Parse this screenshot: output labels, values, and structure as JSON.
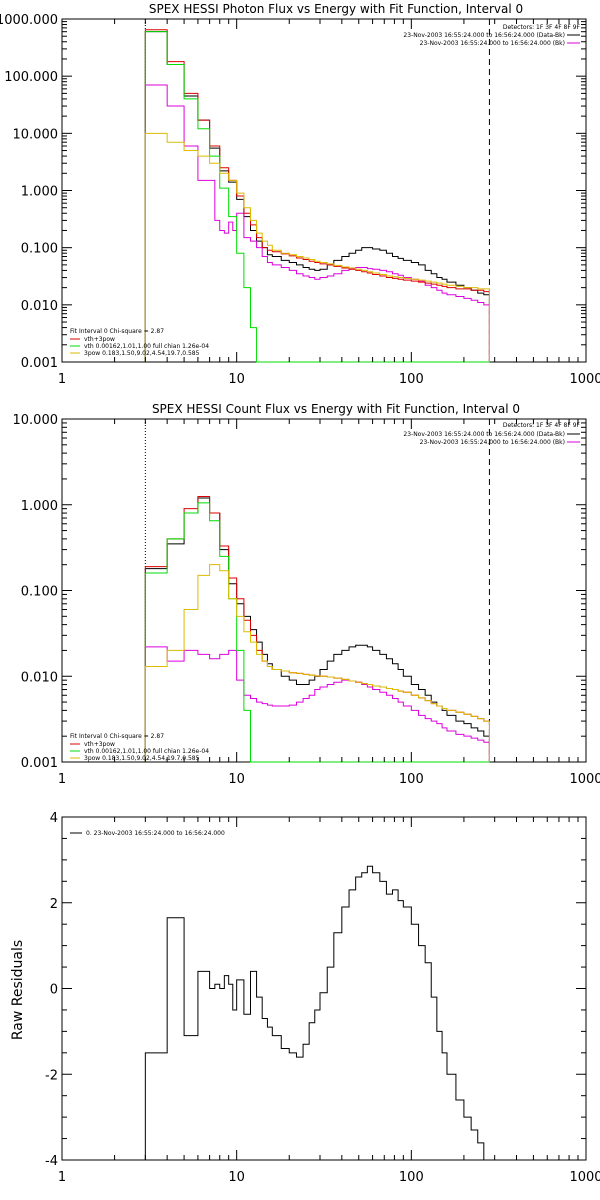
{
  "chart_data": [
    {
      "type": "line",
      "step": true,
      "title": "SPEX HESSI Photon Flux vs Energy with Fit Function, Interval 0",
      "xscale": "log",
      "yscale": "log",
      "xlim": [
        1,
        1000
      ],
      "ylim": [
        0.001,
        1000
      ],
      "x_ticks": [
        "1",
        "10",
        "100",
        "1000"
      ],
      "y_ticks": [
        "1000.000",
        "100.000",
        "10.000",
        "1.000",
        "0.100",
        "0.010",
        "0.001"
      ],
      "legend_right": [
        "Detectors: 1F 3F 4F 8F 9F",
        "23-Nov-2003 16:55:24.000 to 16:56:24.000 (Data-Bk)",
        "23-Nov-2003 16:55:24.000 to 16:56:24.000 (Bk)"
      ],
      "legend_left": [
        "Fit Interval 0   Chi-square = 2.87",
        "vth+3pow",
        "vth 0.00162,1.01,1.00  full chian 1.26e-04",
        "3pow 0.183,1.50,9.02,4.54,19.7,0.585"
      ],
      "vlines": [
        {
          "x": 3,
          "style": "dotted"
        },
        {
          "x": 280,
          "style": "dashed"
        }
      ],
      "x_edges": [
        3,
        3.5,
        4,
        4.5,
        5,
        5.5,
        6,
        6.5,
        7,
        7.5,
        8,
        8.5,
        9,
        9.5,
        10,
        11,
        12,
        13,
        14,
        15,
        16,
        18,
        20,
        22,
        24,
        26,
        28,
        30,
        33,
        36,
        40,
        44,
        48,
        52,
        56,
        60,
        66,
        72,
        78,
        84,
        90,
        100,
        110,
        120,
        130,
        140,
        150,
        160,
        180,
        200,
        220,
        240,
        260,
        280
      ],
      "series": [
        {
          "name": "Data-Bk",
          "color": "#000000",
          "values": [
            600,
            600,
            160,
            160,
            45,
            45,
            17,
            17,
            5.5,
            5.5,
            2.2,
            2.2,
            1.4,
            1.4,
            0.7,
            0.35,
            0.2,
            0.13,
            0.1,
            0.075,
            0.07,
            0.06,
            0.055,
            0.05,
            0.045,
            0.042,
            0.04,
            0.042,
            0.05,
            0.06,
            0.07,
            0.08,
            0.09,
            0.1,
            0.1,
            0.095,
            0.09,
            0.08,
            0.07,
            0.065,
            0.06,
            0.055,
            0.05,
            0.04,
            0.035,
            0.03,
            0.028,
            0.025,
            0.022,
            0.02,
            0.018,
            0.016,
            0.015
          ]
        },
        {
          "name": "Bk",
          "color": "#dd00dd",
          "values": [
            70,
            70,
            30,
            30,
            6,
            6,
            1.5,
            1.5,
            1.5,
            0.3,
            0.2,
            0.18,
            0.28,
            0.2,
            0.4,
            0.15,
            0.13,
            0.1,
            0.07,
            0.055,
            0.05,
            0.045,
            0.04,
            0.035,
            0.032,
            0.03,
            0.028,
            0.03,
            0.032,
            0.035,
            0.04,
            0.043,
            0.045,
            0.045,
            0.043,
            0.042,
            0.04,
            0.038,
            0.035,
            0.033,
            0.03,
            0.028,
            0.026,
            0.022,
            0.02,
            0.018,
            0.016,
            0.015,
            0.014,
            0.013,
            0.012,
            0.011,
            0.01
          ]
        },
        {
          "name": "vth+3pow",
          "color": "#dd0000",
          "values": [
            650,
            650,
            180,
            180,
            50,
            50,
            17,
            17,
            6,
            6,
            2.5,
            2.5,
            1.5,
            1.5,
            0.8,
            0.4,
            0.25,
            0.15,
            0.1,
            0.09,
            0.085,
            0.078,
            0.072,
            0.066,
            0.062,
            0.058,
            0.055,
            0.052,
            0.05,
            0.047,
            0.044,
            0.042,
            0.04,
            0.038,
            0.036,
            0.034,
            0.032,
            0.03,
            0.029,
            0.028,
            0.027,
            0.026,
            0.025,
            0.024,
            0.023,
            0.022,
            0.021,
            0.02,
            0.019,
            0.019,
            0.018,
            0.018,
            0.017
          ]
        },
        {
          "name": "vth",
          "color": "#00dd00",
          "values": [
            600,
            600,
            160,
            160,
            40,
            40,
            12,
            12,
            4,
            4,
            1.1,
            1.1,
            0.35,
            0.35,
            0.08,
            0.02,
            0.004,
            0.001,
            0.001,
            0.001,
            0.001,
            0.001,
            0.001,
            0.001,
            0.001,
            0.001,
            0.001,
            0.001,
            0.001,
            0.001,
            0.001,
            0.001,
            0.001,
            0.001,
            0.001,
            0.001,
            0.001,
            0.001,
            0.001,
            0.001,
            0.001,
            0.001,
            0.001,
            0.001,
            0.001,
            0.001,
            0.001,
            0.001,
            0.001,
            0.001,
            0.001,
            0.001,
            0.001
          ]
        },
        {
          "name": "3pow",
          "color": "#ddbb00",
          "values": [
            10,
            10,
            7,
            7,
            5,
            5,
            4,
            4,
            3,
            3,
            2,
            2,
            1.5,
            1.5,
            0.9,
            0.5,
            0.3,
            0.18,
            0.13,
            0.11,
            0.09,
            0.08,
            0.075,
            0.07,
            0.066,
            0.062,
            0.058,
            0.055,
            0.052,
            0.049,
            0.046,
            0.044,
            0.042,
            0.04,
            0.038,
            0.036,
            0.034,
            0.032,
            0.031,
            0.03,
            0.029,
            0.028,
            0.027,
            0.026,
            0.025,
            0.024,
            0.023,
            0.022,
            0.021,
            0.02,
            0.02,
            0.019,
            0.019
          ]
        }
      ]
    },
    {
      "type": "line",
      "step": true,
      "title": "SPEX HESSI Count Flux vs Energy with Fit Function, Interval 0",
      "xscale": "log",
      "yscale": "log",
      "xlim": [
        1,
        1000
      ],
      "ylim": [
        0.001,
        10
      ],
      "x_ticks": [
        "1",
        "10",
        "100",
        "1000"
      ],
      "y_ticks": [
        "10.000",
        "1.000",
        "0.100",
        "0.010",
        "0.001"
      ],
      "legend_right": [
        "Detectors: 1F 3F 4F 8F 9F",
        "23-Nov-2003 16:55:24.000 to 16:56:24.000 (Data-Bk)",
        "23-Nov-2003 16:55:24.000 to 16:56:24.000 (Bk)"
      ],
      "legend_left": [
        "Fit Interval 0   Chi-square = 2.87",
        "vth+3pow",
        "vth 0.00162,1.01,1.00  full chian 1.26e-04",
        "3pow 0.183,1.50,9.02,4.54,19.7,0.585"
      ],
      "vlines": [
        {
          "x": 3,
          "style": "dotted"
        },
        {
          "x": 280,
          "style": "dashed"
        }
      ],
      "x_edges": [
        3,
        3.5,
        4,
        4.5,
        5,
        5.5,
        6,
        6.5,
        7,
        7.5,
        8,
        8.5,
        9,
        9.5,
        10,
        11,
        12,
        13,
        14,
        15,
        16,
        18,
        20,
        22,
        24,
        26,
        28,
        30,
        33,
        36,
        40,
        44,
        48,
        52,
        56,
        60,
        66,
        72,
        78,
        84,
        90,
        100,
        110,
        120,
        130,
        140,
        150,
        160,
        180,
        200,
        220,
        240,
        260,
        280
      ],
      "series": [
        {
          "name": "Data-Bk",
          "color": "#000000",
          "values": [
            0.18,
            0.18,
            0.35,
            0.35,
            0.8,
            0.8,
            1.2,
            1.2,
            0.8,
            0.8,
            0.3,
            0.3,
            0.12,
            0.12,
            0.07,
            0.05,
            0.035,
            0.025,
            0.018,
            0.014,
            0.012,
            0.01,
            0.009,
            0.008,
            0.008,
            0.009,
            0.01,
            0.012,
            0.015,
            0.018,
            0.02,
            0.022,
            0.023,
            0.023,
            0.022,
            0.02,
            0.018,
            0.016,
            0.014,
            0.012,
            0.01,
            0.008,
            0.007,
            0.006,
            0.005,
            0.0045,
            0.004,
            0.0035,
            0.003,
            0.0028,
            0.0025,
            0.0023,
            0.002
          ]
        },
        {
          "name": "Bk",
          "color": "#dd00dd",
          "values": [
            0.022,
            0.022,
            0.015,
            0.015,
            0.02,
            0.02,
            0.018,
            0.018,
            0.016,
            0.016,
            0.018,
            0.018,
            0.02,
            0.02,
            0.009,
            0.006,
            0.0055,
            0.005,
            0.0048,
            0.0046,
            0.0045,
            0.0045,
            0.0046,
            0.005,
            0.0055,
            0.006,
            0.007,
            0.0075,
            0.008,
            0.0085,
            0.009,
            0.0088,
            0.0085,
            0.008,
            0.0075,
            0.007,
            0.0065,
            0.006,
            0.0055,
            0.005,
            0.0045,
            0.004,
            0.0035,
            0.0032,
            0.003,
            0.0028,
            0.0025,
            0.0023,
            0.0021,
            0.002,
            0.0019,
            0.0018,
            0.0017
          ]
        },
        {
          "name": "vth+3pow",
          "color": "#dd0000",
          "values": [
            0.19,
            0.19,
            0.4,
            0.4,
            0.9,
            0.9,
            1.25,
            1.25,
            0.8,
            0.8,
            0.33,
            0.33,
            0.14,
            0.14,
            0.08,
            0.045,
            0.03,
            0.02,
            0.015,
            0.013,
            0.012,
            0.0115,
            0.011,
            0.0108,
            0.0105,
            0.0103,
            0.0101,
            0.01,
            0.0098,
            0.0095,
            0.0092,
            0.0088,
            0.0085,
            0.0082,
            0.008,
            0.0077,
            0.0075,
            0.0072,
            0.007,
            0.0067,
            0.0065,
            0.006,
            0.0056,
            0.0052,
            0.0048,
            0.0045,
            0.0042,
            0.004,
            0.0038,
            0.0036,
            0.0034,
            0.0032,
            0.003
          ]
        },
        {
          "name": "vth",
          "color": "#00dd00",
          "values": [
            0.16,
            0.16,
            0.4,
            0.4,
            0.8,
            0.8,
            1.05,
            1.05,
            0.65,
            0.65,
            0.25,
            0.25,
            0.08,
            0.08,
            0.02,
            0.004,
            0.001,
            0.001,
            0.001,
            0.001,
            0.001,
            0.001,
            0.001,
            0.001,
            0.001,
            0.001,
            0.001,
            0.001,
            0.001,
            0.001,
            0.001,
            0.001,
            0.001,
            0.001,
            0.001,
            0.001,
            0.001,
            0.001,
            0.001,
            0.001,
            0.001,
            0.001,
            0.001,
            0.001,
            0.001,
            0.001,
            0.001,
            0.001,
            0.001,
            0.001,
            0.001,
            0.001,
            0.001
          ]
        },
        {
          "name": "3pow",
          "color": "#ddbb00",
          "values": [
            0.013,
            0.013,
            0.02,
            0.02,
            0.06,
            0.06,
            0.15,
            0.15,
            0.2,
            0.2,
            0.17,
            0.17,
            0.08,
            0.08,
            0.05,
            0.033,
            0.025,
            0.018,
            0.015,
            0.013,
            0.012,
            0.0115,
            0.011,
            0.0108,
            0.0105,
            0.0103,
            0.0101,
            0.01,
            0.0098,
            0.0095,
            0.0092,
            0.0088,
            0.0085,
            0.0082,
            0.008,
            0.0077,
            0.0075,
            0.0072,
            0.007,
            0.0067,
            0.0065,
            0.006,
            0.0056,
            0.0052,
            0.0048,
            0.0045,
            0.0042,
            0.004,
            0.0038,
            0.0036,
            0.0034,
            0.0032,
            0.003
          ]
        }
      ]
    },
    {
      "type": "line",
      "step": true,
      "title": "",
      "xscale": "log",
      "yscale": "linear",
      "xlim": [
        1,
        1000
      ],
      "ylim": [
        -4,
        4
      ],
      "x_ticks": [
        "1",
        "10",
        "100",
        "1000"
      ],
      "y_ticks": [
        "4",
        "2",
        "0",
        "-2",
        "-4"
      ],
      "ylabel": "Raw Residuals",
      "legend": [
        "0. 23-Nov-2003 16:55:24.000 to 16:56:24.000"
      ],
      "x_edges": [
        3,
        3.5,
        4,
        4.5,
        5,
        5.5,
        6,
        6.5,
        7,
        7.5,
        8,
        8.5,
        9,
        9.5,
        10,
        11,
        12,
        13,
        14,
        15,
        16,
        18,
        20,
        22,
        24,
        26,
        28,
        30,
        33,
        36,
        40,
        44,
        48,
        52,
        56,
        60,
        66,
        72,
        78,
        84,
        90,
        100,
        110,
        120,
        130,
        140,
        150,
        160,
        180,
        200,
        220,
        240,
        260,
        280
      ],
      "series": [
        {
          "name": "0. 23-Nov-2003 16:55:24.000 to 16:56:24.000",
          "color": "#000000",
          "values": [
            -1.5,
            -1.5,
            1.65,
            1.65,
            -1.1,
            -1.1,
            0.4,
            0.4,
            0.0,
            0.1,
            0.0,
            0.3,
            0.1,
            -0.5,
            0.2,
            -0.6,
            0.4,
            -0.2,
            -0.7,
            -0.9,
            -1.1,
            -1.4,
            -1.5,
            -1.6,
            -1.3,
            -0.8,
            -0.5,
            -0.1,
            0.5,
            1.3,
            1.9,
            2.3,
            2.6,
            2.7,
            2.85,
            2.7,
            2.5,
            2.2,
            2.3,
            2.05,
            1.9,
            1.5,
            1.0,
            0.6,
            -0.2,
            -1.0,
            -1.5,
            -2.0,
            -2.6,
            -3.0,
            -3.3,
            -3.6,
            -4.0
          ]
        }
      ]
    }
  ]
}
